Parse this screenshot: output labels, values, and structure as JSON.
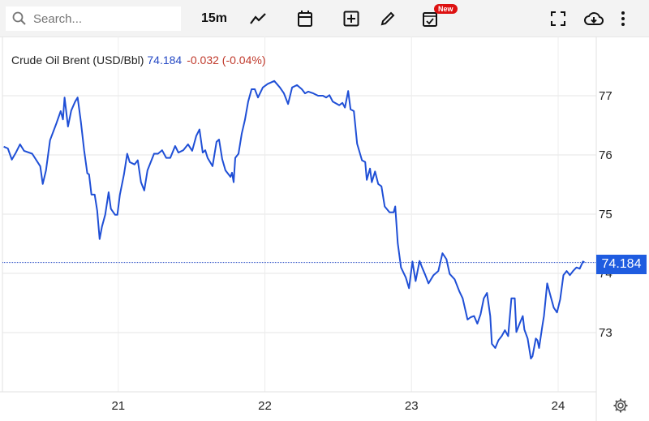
{
  "toolbar": {
    "search_placeholder": "Search...",
    "interval": "15m",
    "new_badge": "New",
    "icons": [
      "search-icon",
      "line-chart-icon",
      "calendar-icon",
      "add-square-icon",
      "pencil-icon",
      "calendar-check-icon",
      "fullscreen-icon",
      "cloud-download-icon",
      "more-vertical-icon"
    ]
  },
  "legend": {
    "title": "Crude Oil Brent (USD/Bbl)",
    "last": "74.184",
    "change": "-0.032 (-0.04%)"
  },
  "price_label": "74.184",
  "colors": {
    "line": "#1f4fd6",
    "price_box": "#1f5ce0",
    "change": "#c0392b",
    "last": "#2549c4"
  },
  "chart_data": {
    "type": "line",
    "title": "Crude Oil Brent (USD/Bbl)",
    "xlim": [
      20.21,
      24.26
    ],
    "ylim": [
      72.0,
      78.0
    ],
    "grid": true,
    "xticks": [
      {
        "value": 21,
        "label": "21"
      },
      {
        "value": 22,
        "label": "22"
      },
      {
        "value": 23,
        "label": "23"
      },
      {
        "value": 24,
        "label": "24"
      }
    ],
    "yticks": [
      {
        "value": 73,
        "label": "73"
      },
      {
        "value": 74,
        "label": "74"
      },
      {
        "value": 75,
        "label": "75"
      },
      {
        "value": 76,
        "label": "76"
      },
      {
        "value": 77,
        "label": "77"
      }
    ],
    "last_price": 74.184,
    "series": [
      {
        "x": [
          20.219,
          20.247,
          20.274,
          20.302,
          20.33,
          20.357,
          20.413,
          20.468,
          20.485,
          20.507,
          20.535,
          20.579,
          20.607,
          20.623,
          20.634,
          20.657,
          20.679,
          20.706,
          20.723,
          20.745,
          20.767,
          20.789,
          20.801,
          20.817,
          20.839,
          20.856,
          20.873,
          20.889,
          20.911,
          20.934,
          20.95,
          20.978,
          20.994,
          21.011,
          21.039,
          21.061,
          21.078,
          21.111,
          21.133,
          21.155,
          21.177,
          21.199,
          21.244,
          21.271,
          21.299,
          21.327,
          21.355,
          21.388,
          21.41,
          21.443,
          21.476,
          21.504,
          21.532,
          21.554,
          21.576,
          21.593,
          21.609,
          21.643,
          21.67,
          21.687,
          21.709,
          21.731,
          21.765,
          21.776,
          21.787,
          21.798,
          21.82,
          21.842,
          21.864,
          21.886,
          21.909,
          21.931,
          21.953,
          21.986,
          22.019,
          22.064,
          22.102,
          22.13,
          22.158,
          22.186,
          22.219,
          22.252,
          22.274,
          22.296,
          22.33,
          22.363,
          22.396,
          22.418,
          22.44,
          22.463,
          22.507,
          22.529,
          22.546,
          22.568,
          22.584,
          22.607,
          22.629,
          22.662,
          22.684,
          22.695,
          22.717,
          22.729,
          22.751,
          22.773,
          22.795,
          22.817,
          22.85,
          22.878,
          22.889,
          22.906,
          22.928,
          22.961,
          22.983,
          23.006,
          23.028,
          23.055,
          23.072,
          23.094,
          23.116,
          23.15,
          23.183,
          23.211,
          23.238,
          23.26,
          23.294,
          23.327,
          23.349,
          23.382,
          23.404,
          23.427,
          23.449,
          23.471,
          23.493,
          23.515,
          23.537,
          23.548,
          23.571,
          23.593,
          23.615,
          23.637,
          23.659,
          23.681,
          23.704,
          23.715,
          23.737,
          23.759,
          23.77,
          23.792,
          23.814,
          23.825,
          23.848,
          23.859,
          23.87,
          23.892,
          23.903,
          23.925,
          23.947,
          23.97,
          23.992,
          24.014,
          24.036,
          24.058,
          24.08,
          24.102,
          24.125,
          24.147,
          24.169,
          24.18
        ],
        "y": [
          76.14,
          76.11,
          75.92,
          76.04,
          76.18,
          76.07,
          76.02,
          75.81,
          75.51,
          75.74,
          76.25,
          76.54,
          76.74,
          76.6,
          76.97,
          76.48,
          76.75,
          76.9,
          76.97,
          76.56,
          76.08,
          75.69,
          75.67,
          75.33,
          75.33,
          75.06,
          74.58,
          74.79,
          74.99,
          75.37,
          75.09,
          74.99,
          74.99,
          75.33,
          75.67,
          76.02,
          75.88,
          75.84,
          75.91,
          75.54,
          75.4,
          75.74,
          76.02,
          76.02,
          76.08,
          75.95,
          75.95,
          76.15,
          76.04,
          76.08,
          76.18,
          76.07,
          76.32,
          76.43,
          76.04,
          76.08,
          75.95,
          75.81,
          76.22,
          76.26,
          75.93,
          75.74,
          75.63,
          75.7,
          75.54,
          75.95,
          76.02,
          76.36,
          76.59,
          76.9,
          77.11,
          77.11,
          76.97,
          77.14,
          77.2,
          77.25,
          77.14,
          77.04,
          76.86,
          77.14,
          77.18,
          77.11,
          77.04,
          77.07,
          77.04,
          77.0,
          77.0,
          76.97,
          77.01,
          76.9,
          76.84,
          76.88,
          76.8,
          77.08,
          76.77,
          76.74,
          76.19,
          75.91,
          75.88,
          75.58,
          75.77,
          75.54,
          75.72,
          75.51,
          75.47,
          75.13,
          75.03,
          75.03,
          75.13,
          74.51,
          74.1,
          73.93,
          73.75,
          74.2,
          73.87,
          74.21,
          74.1,
          73.97,
          73.83,
          73.97,
          74.04,
          74.34,
          74.24,
          73.99,
          73.9,
          73.69,
          73.58,
          73.22,
          73.26,
          73.28,
          73.15,
          73.31,
          73.58,
          73.67,
          73.28,
          72.81,
          72.74,
          72.87,
          72.94,
          73.04,
          72.94,
          73.58,
          73.58,
          73.01,
          73.15,
          73.28,
          73.05,
          72.9,
          72.56,
          72.6,
          72.9,
          72.87,
          72.74,
          73.11,
          73.28,
          73.83,
          73.63,
          73.42,
          73.34,
          73.56,
          73.97,
          74.04,
          73.97,
          74.04,
          74.1,
          74.08,
          74.2,
          74.184
        ]
      }
    ]
  }
}
